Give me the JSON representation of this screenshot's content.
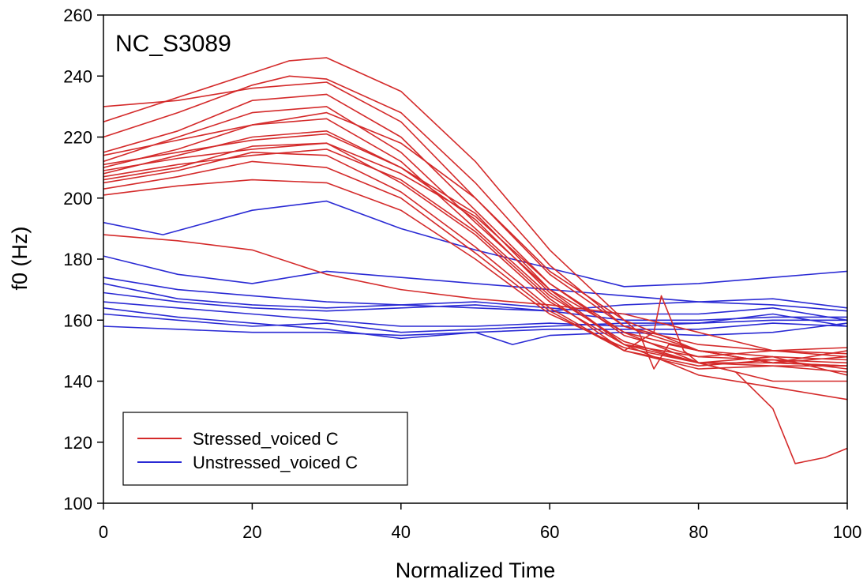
{
  "chart_data": {
    "type": "line",
    "title": "NC_S3089",
    "xlabel": "Normalized Time",
    "ylabel": "f0 (Hz)",
    "xlim": [
      0,
      100
    ],
    "ylim": [
      100,
      260
    ],
    "x_ticks": [
      0,
      20,
      40,
      60,
      80,
      100
    ],
    "y_ticks": [
      100,
      120,
      140,
      160,
      180,
      200,
      220,
      240,
      260
    ],
    "x_tick_labels": [
      "0",
      "20",
      "40",
      "60",
      "80",
      "100"
    ],
    "y_tick_labels": [
      "100",
      "120",
      "140",
      "160",
      "180",
      "200",
      "220",
      "240",
      "260"
    ],
    "grid": false,
    "legend": {
      "position": "bottom-left",
      "entries": [
        {
          "label": "Stressed_voiced C",
          "color": "#d42a2a"
        },
        {
          "label": "Unstressed_voiced C",
          "color": "#2a2ad4"
        }
      ]
    },
    "series": [
      {
        "group": "Stressed_voiced C",
        "color": "#d42a2a",
        "x": [
          0,
          10,
          20,
          25,
          30,
          40,
          50,
          60,
          70,
          80,
          90,
          100
        ],
        "y": [
          225,
          233,
          241,
          245,
          246,
          235,
          212,
          183,
          160,
          150,
          146,
          145
        ]
      },
      {
        "group": "Stressed_voiced C",
        "color": "#d42a2a",
        "x": [
          0,
          10,
          20,
          25,
          30,
          40,
          50,
          60,
          70,
          80,
          90,
          100
        ],
        "y": [
          220,
          228,
          237,
          240,
          239,
          228,
          205,
          178,
          158,
          150,
          148,
          147
        ]
      },
      {
        "group": "Stressed_voiced C",
        "color": "#d42a2a",
        "x": [
          0,
          10,
          20,
          30,
          40,
          50,
          60,
          70,
          80,
          90,
          100
        ],
        "y": [
          230,
          232,
          236,
          238,
          225,
          200,
          175,
          158,
          152,
          150,
          149
        ]
      },
      {
        "group": "Stressed_voiced C",
        "color": "#d42a2a",
        "x": [
          0,
          10,
          20,
          30,
          40,
          50,
          60,
          70,
          80,
          90,
          100
        ],
        "y": [
          215,
          222,
          232,
          234,
          220,
          196,
          172,
          155,
          148,
          147,
          146
        ]
      },
      {
        "group": "Stressed_voiced C",
        "color": "#d42a2a",
        "x": [
          0,
          10,
          20,
          30,
          40,
          50,
          60,
          70,
          80,
          90,
          100
        ],
        "y": [
          212,
          220,
          228,
          230,
          215,
          192,
          170,
          156,
          150,
          146,
          145
        ]
      },
      {
        "group": "Stressed_voiced C",
        "color": "#d42a2a",
        "x": [
          0,
          10,
          20,
          30,
          40,
          50,
          60,
          70,
          80,
          90,
          100
        ],
        "y": [
          210,
          216,
          224,
          226,
          212,
          190,
          168,
          153,
          146,
          145,
          143
        ]
      },
      {
        "group": "Stressed_voiced C",
        "color": "#d42a2a",
        "x": [
          0,
          10,
          20,
          30,
          40,
          50,
          60,
          70,
          80,
          90,
          100
        ],
        "y": [
          208,
          214,
          220,
          222,
          210,
          195,
          170,
          152,
          146,
          146,
          150
        ]
      },
      {
        "group": "Stressed_voiced C",
        "color": "#d42a2a",
        "x": [
          0,
          10,
          20,
          30,
          40,
          50,
          60,
          70,
          80,
          90,
          100
        ],
        "y": [
          206,
          210,
          217,
          218,
          205,
          188,
          166,
          152,
          148,
          150,
          151
        ]
      },
      {
        "group": "Stressed_voiced C",
        "color": "#d42a2a",
        "x": [
          0,
          10,
          20,
          30,
          40,
          50,
          60,
          70,
          80,
          90,
          100
        ],
        "y": [
          205,
          209,
          215,
          214,
          202,
          184,
          164,
          150,
          144,
          145,
          145
        ]
      },
      {
        "group": "Stressed_voiced C",
        "color": "#d42a2a",
        "x": [
          0,
          10,
          20,
          30,
          40,
          50,
          60,
          70,
          80,
          90,
          100
        ],
        "y": [
          203,
          207,
          212,
          210,
          200,
          182,
          163,
          150,
          145,
          147,
          144
        ]
      },
      {
        "group": "Stressed_voiced C",
        "color": "#d42a2a",
        "x": [
          0,
          10,
          20,
          30,
          40,
          50,
          60,
          70,
          80,
          90,
          100
        ],
        "y": [
          201,
          204,
          206,
          205,
          196,
          180,
          162,
          151,
          146,
          148,
          142
        ]
      },
      {
        "group": "Stressed_voiced C",
        "color": "#d42a2a",
        "x": [
          0,
          10,
          20,
          30,
          40,
          50,
          60,
          70,
          80,
          90,
          100
        ],
        "y": [
          209,
          213,
          216,
          218,
          208,
          194,
          172,
          156,
          146,
          140,
          140
        ]
      },
      {
        "group": "Stressed_voiced C",
        "color": "#d42a2a",
        "x": [
          0,
          10,
          20,
          30,
          40,
          50,
          60,
          70,
          72,
          74,
          76,
          80,
          90,
          100
        ],
        "y": [
          214,
          219,
          224,
          228,
          218,
          200,
          176,
          160,
          156,
          144,
          152,
          150,
          146,
          148
        ]
      },
      {
        "group": "Stressed_voiced C",
        "color": "#d42a2a",
        "x": [
          0,
          10,
          20,
          30,
          40,
          50,
          60,
          70,
          80,
          90,
          100
        ],
        "y": [
          211,
          215,
          219,
          221,
          210,
          193,
          169,
          152,
          142,
          138,
          134
        ]
      },
      {
        "group": "Stressed_voiced C",
        "color": "#d42a2a",
        "x": [
          0,
          10,
          20,
          30,
          40,
          50,
          60,
          70,
          74,
          75,
          78,
          80,
          85,
          90,
          93,
          97,
          100
        ],
        "y": [
          207,
          211,
          214,
          216,
          206,
          189,
          167,
          150,
          156,
          168,
          150,
          146,
          143,
          131,
          113,
          115,
          118
        ]
      },
      {
        "group": "Stressed_voiced C",
        "color": "#d42a2a",
        "x": [
          0,
          10,
          20,
          30,
          40,
          50,
          60,
          70,
          80,
          90,
          100
        ],
        "y": [
          188,
          186,
          183,
          175,
          170,
          167,
          165,
          162,
          156,
          150,
          148
        ]
      },
      {
        "group": "Unstressed_voiced C",
        "color": "#2a2ad4",
        "x": [
          0,
          8,
          20,
          30,
          40,
          50,
          60,
          70,
          80,
          90,
          100
        ],
        "y": [
          192,
          188,
          196,
          199,
          190,
          183,
          177,
          171,
          172,
          174,
          176
        ]
      },
      {
        "group": "Unstressed_voiced C",
        "color": "#2a2ad4",
        "x": [
          0,
          10,
          20,
          30,
          40,
          50,
          60,
          70,
          80,
          90,
          100
        ],
        "y": [
          181,
          175,
          172,
          176,
          174,
          172,
          170,
          168,
          166,
          165,
          163
        ]
      },
      {
        "group": "Unstressed_voiced C",
        "color": "#2a2ad4",
        "x": [
          0,
          10,
          20,
          30,
          40,
          50,
          60,
          70,
          80,
          90,
          100
        ],
        "y": [
          174,
          170,
          168,
          166,
          165,
          164,
          163,
          165,
          166,
          167,
          164
        ]
      },
      {
        "group": "Unstressed_voiced C",
        "color": "#2a2ad4",
        "x": [
          0,
          10,
          20,
          30,
          40,
          50,
          60,
          70,
          80,
          90,
          100
        ],
        "y": [
          172,
          167,
          165,
          164,
          165,
          166,
          164,
          162,
          162,
          164,
          160
        ]
      },
      {
        "group": "Unstressed_voiced C",
        "color": "#2a2ad4",
        "x": [
          0,
          10,
          20,
          30,
          40,
          50,
          60,
          70,
          80,
          90,
          100
        ],
        "y": [
          169,
          166,
          164,
          163,
          164,
          165,
          163,
          160,
          160,
          161,
          161
        ]
      },
      {
        "group": "Unstressed_voiced C",
        "color": "#2a2ad4",
        "x": [
          0,
          10,
          20,
          30,
          40,
          50,
          60,
          70,
          80,
          90,
          100
        ],
        "y": [
          166,
          164,
          162,
          160,
          158,
          158,
          159,
          158,
          159,
          162,
          158
        ]
      },
      {
        "group": "Unstressed_voiced C",
        "color": "#2a2ad4",
        "x": [
          0,
          10,
          20,
          30,
          40,
          50,
          60,
          70,
          80,
          90,
          100
        ],
        "y": [
          164,
          161,
          159,
          157,
          154,
          156,
          157,
          157,
          157,
          159,
          158
        ]
      },
      {
        "group": "Unstressed_voiced C",
        "color": "#2a2ad4",
        "x": [
          0,
          10,
          20,
          30,
          40,
          50,
          60,
          70,
          80,
          90,
          100
        ],
        "y": [
          162,
          160,
          158,
          159,
          156,
          157,
          158,
          159,
          159,
          160,
          160
        ]
      },
      {
        "group": "Unstressed_voiced C",
        "color": "#2a2ad4",
        "x": [
          0,
          10,
          20,
          30,
          40,
          50,
          55,
          60,
          70,
          80,
          90,
          100
        ],
        "y": [
          158,
          157,
          156,
          156,
          155,
          156,
          152,
          155,
          156,
          155,
          156,
          159
        ]
      }
    ]
  }
}
